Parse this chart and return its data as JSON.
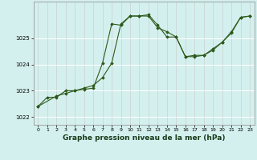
{
  "background_color": "#d4f0ee",
  "grid_color_v": "#c8c8c8",
  "grid_color_h": "#ffffff",
  "line_color": "#2d5a1b",
  "marker_color": "#2d5a1b",
  "xlabel": "Graphe pression niveau de la mer (hPa)",
  "xlabel_fontsize": 6.5,
  "xlim": [
    -0.5,
    23.5
  ],
  "ylim": [
    1021.7,
    1026.4
  ],
  "yticks": [
    1022,
    1023,
    1024,
    1025
  ],
  "xticks": [
    0,
    1,
    2,
    3,
    4,
    5,
    6,
    7,
    8,
    9,
    10,
    11,
    12,
    13,
    14,
    15,
    16,
    17,
    18,
    19,
    20,
    21,
    22,
    23
  ],
  "series1_x": [
    0,
    1,
    2,
    3,
    4,
    5,
    6,
    7,
    8,
    9,
    10,
    11,
    12,
    13,
    14,
    15,
    16,
    17,
    18,
    19,
    20,
    21,
    22,
    23
  ],
  "series1_y": [
    1022.4,
    1022.75,
    1022.75,
    1023.0,
    1023.0,
    1023.1,
    1023.2,
    1023.5,
    1024.05,
    1025.55,
    1025.85,
    1025.85,
    1025.9,
    1025.5,
    1025.05,
    1025.05,
    1024.3,
    1024.3,
    1024.35,
    1024.55,
    1024.85,
    1025.2,
    1025.8,
    1025.85
  ],
  "series2_x": [
    0,
    2,
    3,
    4,
    5,
    6,
    7,
    8,
    9,
    10,
    11,
    12,
    13,
    14,
    15,
    16,
    17,
    18,
    19,
    20,
    21,
    22,
    23
  ],
  "series2_y": [
    1022.4,
    1022.8,
    1022.9,
    1023.0,
    1023.05,
    1023.1,
    1024.05,
    1025.55,
    1025.5,
    1025.85,
    1025.85,
    1025.85,
    1025.4,
    1025.25,
    1025.05,
    1024.3,
    1024.35,
    1024.35,
    1024.6,
    1024.85,
    1025.25,
    1025.8,
    1025.85
  ],
  "tick_fontsize": 5,
  "tick_fontsize_x": 4.5
}
